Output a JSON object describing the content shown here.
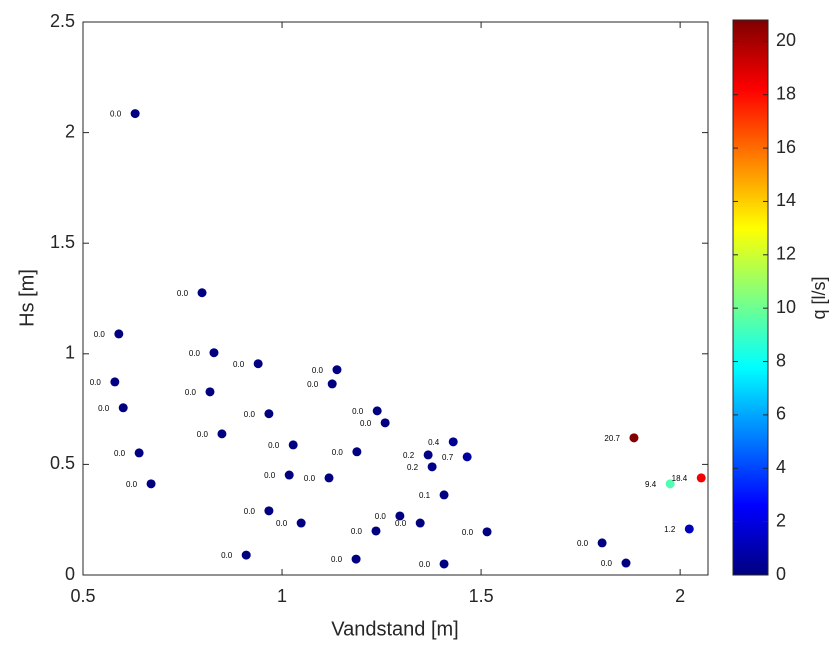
{
  "chart_data": {
    "type": "scatter",
    "x_label": "Vandstand [m]",
    "y_label": "Hs [m]",
    "x": [
      0.631,
      0.799,
      0.59,
      0.829,
      0.94,
      1.138,
      1.126,
      0.58,
      0.819,
      0.601,
      0.967,
      1.239,
      1.259,
      0.849,
      1.43,
      1.028,
      0.641,
      1.188,
      1.367,
      1.465,
      1.377,
      1.018,
      1.118,
      0.671,
      1.407,
      0.967,
      1.048,
      1.296,
      1.347,
      1.236,
      1.515,
      0.91,
      1.186,
      1.407,
      1.804,
      1.864,
      1.884,
      1.975,
      2.053,
      2.023
    ],
    "values": [
      2.086,
      1.276,
      1.09,
      1.005,
      0.955,
      0.928,
      0.864,
      0.873,
      0.828,
      0.756,
      0.729,
      0.742,
      0.688,
      0.638,
      0.602,
      0.588,
      0.552,
      0.557,
      0.543,
      0.534,
      0.489,
      0.452,
      0.439,
      0.412,
      0.362,
      0.29,
      0.235,
      0.267,
      0.235,
      0.199,
      0.195,
      0.09,
      0.072,
      0.05,
      0.145,
      0.054,
      0.62,
      0.412,
      0.439,
      0.208
    ],
    "color_values": [
      0,
      0,
      0,
      0,
      0,
      0,
      0,
      0,
      0,
      0,
      0,
      0,
      0,
      0,
      0.4,
      0,
      0,
      0,
      0.2,
      0.7,
      0.2,
      0,
      0,
      0,
      0.1,
      0,
      0,
      0,
      0,
      0,
      0,
      0,
      0,
      0,
      0,
      0,
      20.7,
      9.4,
      18.4,
      1.2
    ],
    "value_labels": [
      "0.0",
      "0.0",
      "0.0",
      "0.0",
      "0.0",
      "0.0",
      "0.0",
      "0.0",
      "0.0",
      "0.0",
      "0.0",
      "0.0",
      "0.0",
      "0.0",
      "0.4",
      "0.0",
      "0.0",
      "0.0",
      "0.2",
      "0.7",
      "0.2",
      "0.0",
      "0.0",
      "0.0",
      "0.1",
      "0.0",
      "0.0",
      "0.0",
      "0.0",
      "0.0",
      "0.0",
      "0.0",
      "0.0",
      "0.0",
      "0.0",
      "0.0",
      "20.7",
      "9.4",
      "18.4",
      "1.2"
    ],
    "xlim": [
      0.5,
      2.07
    ],
    "ylim": [
      0,
      2.5
    ],
    "xticks": [
      0.5,
      1,
      1.5,
      2
    ],
    "yticks": [
      0,
      0.5,
      1,
      1.5,
      2,
      2.5
    ],
    "colorbar": {
      "label": "q [l/s]",
      "colormap": "jet",
      "lim": [
        0,
        20.8
      ],
      "ticks": [
        0,
        2,
        4,
        6,
        8,
        10,
        12,
        14,
        16,
        18,
        20
      ]
    }
  }
}
